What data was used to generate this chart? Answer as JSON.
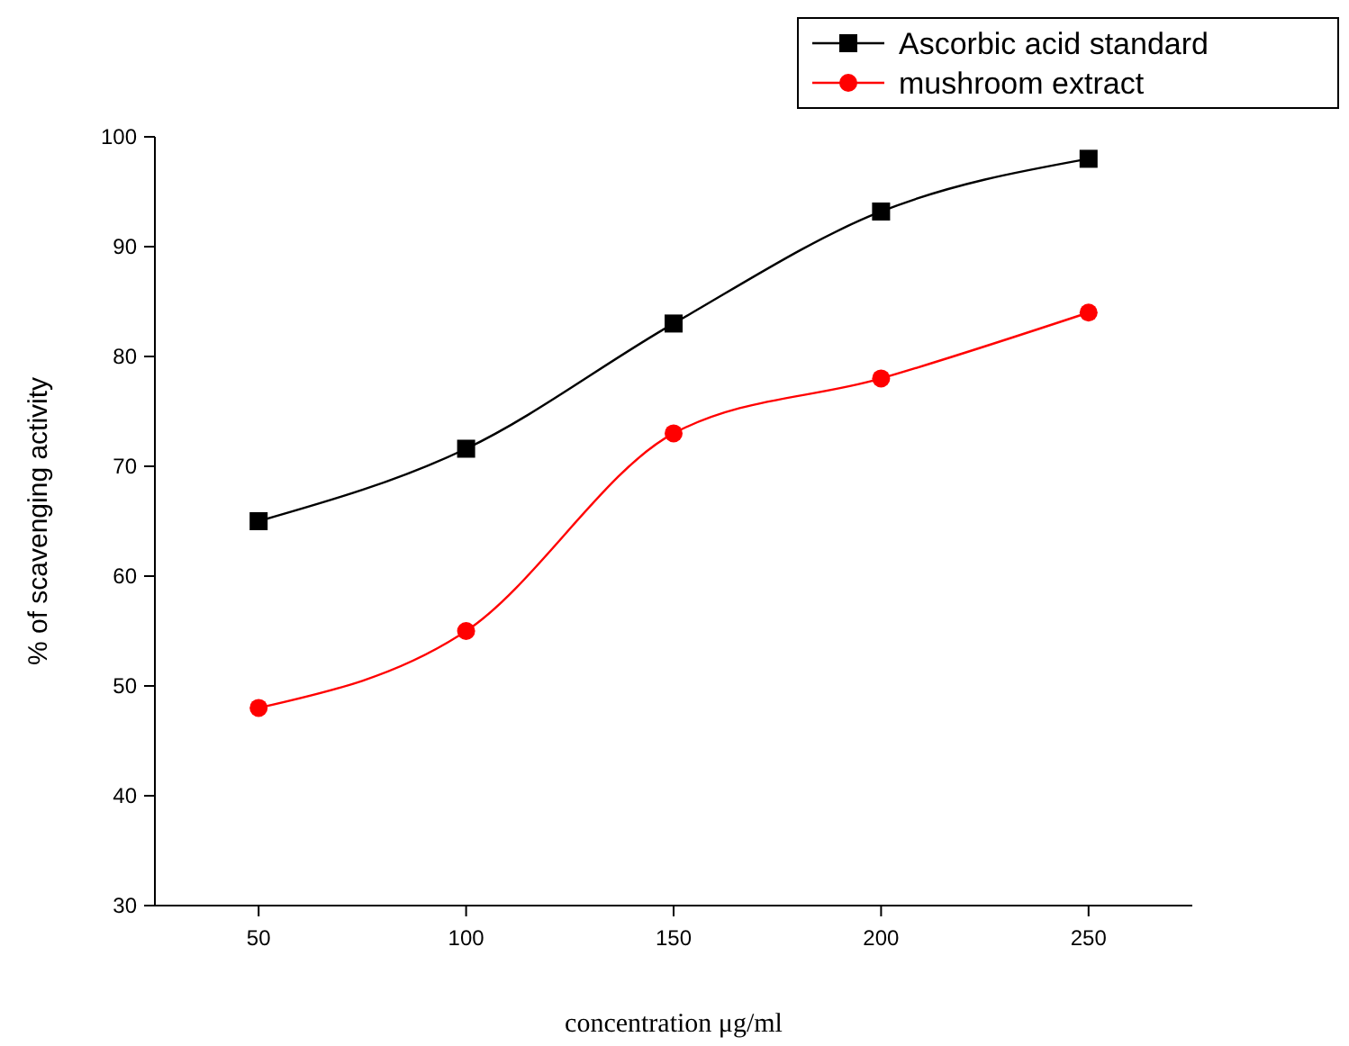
{
  "chart_data": {
    "type": "line",
    "xlabel": "concentration μg/ml",
    "ylabel": "% of scavenging activity",
    "x": [
      50,
      100,
      150,
      200,
      250
    ],
    "series": [
      {
        "name": "Ascorbic acid standard",
        "color": "#000000",
        "marker": "square",
        "values": [
          65,
          71.6,
          83,
          93.2,
          98
        ]
      },
      {
        "name": "mushroom extract",
        "color": "#ff0000",
        "marker": "circle",
        "values": [
          48,
          55,
          73,
          78,
          84
        ]
      }
    ],
    "xlim": [
      25,
      275
    ],
    "xticks": [
      50,
      100,
      150,
      200,
      250
    ],
    "ylim": [
      30,
      100
    ],
    "yticks": [
      30,
      40,
      50,
      60,
      70,
      80,
      90,
      100
    ],
    "legend": "top right",
    "grid": false,
    "line_style": "solid"
  }
}
